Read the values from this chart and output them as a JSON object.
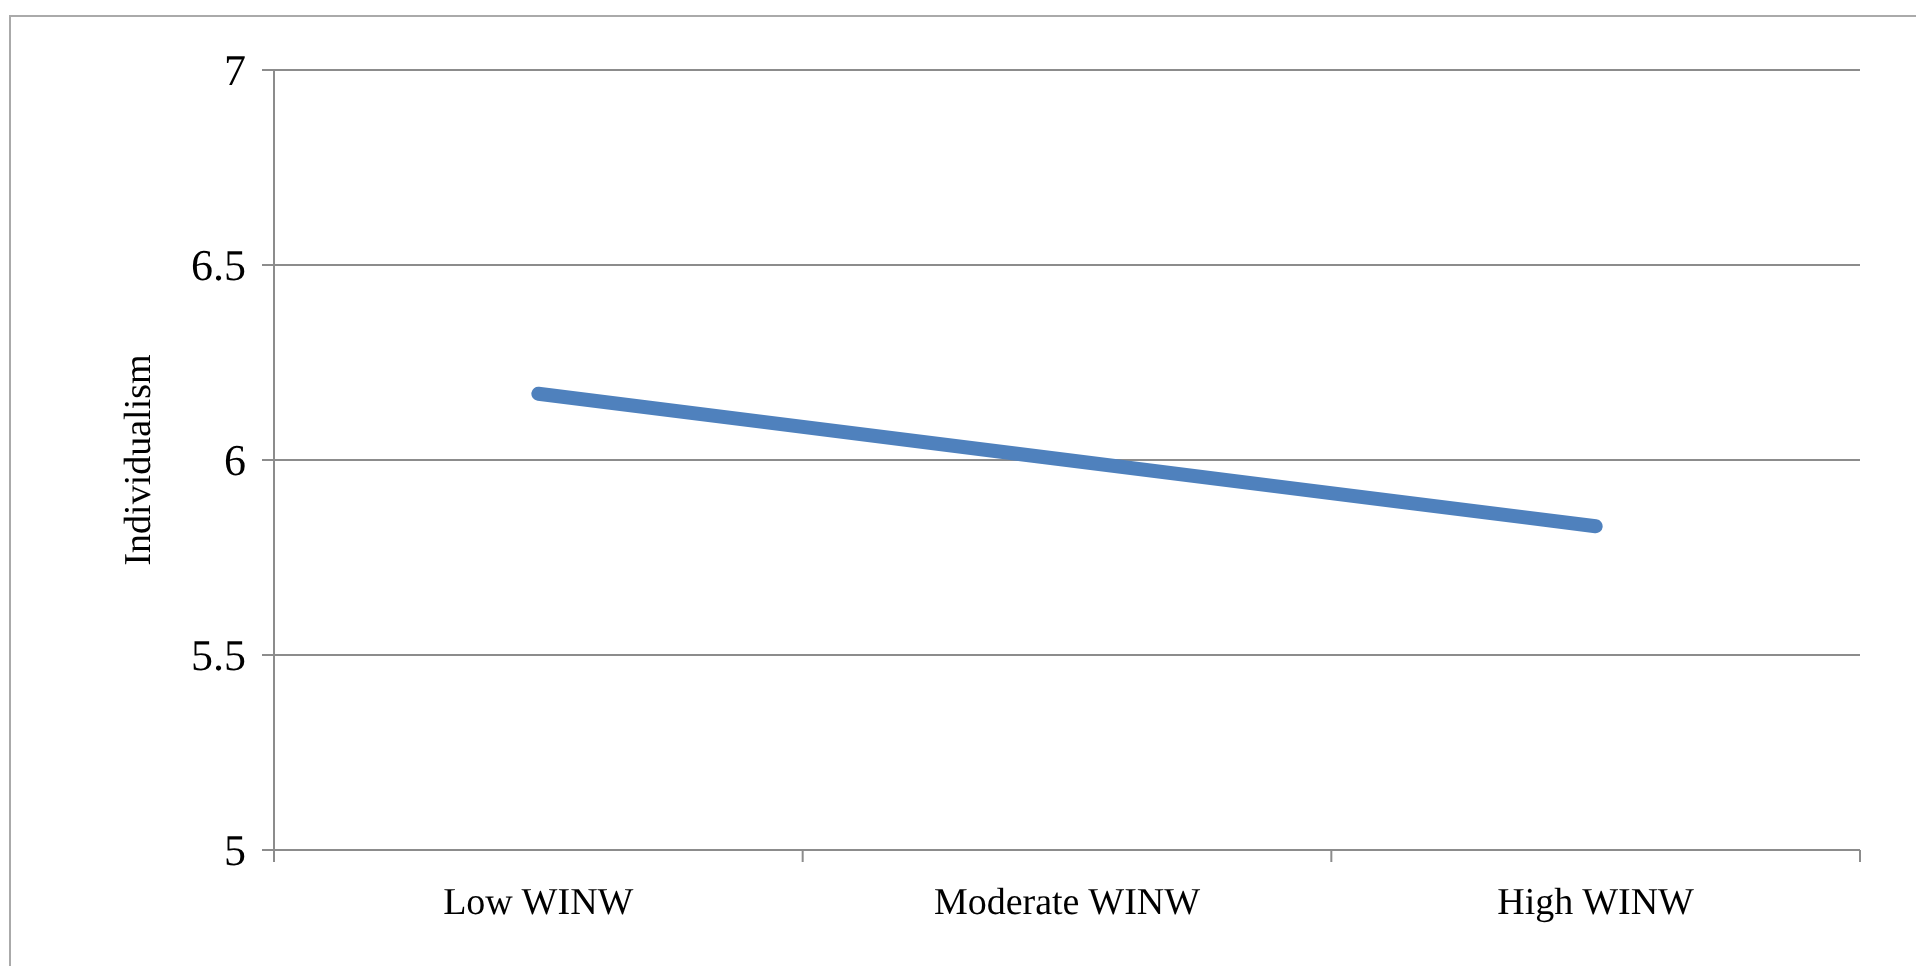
{
  "chart_data": {
    "type": "line",
    "ylabel": "Individualism",
    "categories": [
      "Low WINW",
      "Moderate WINW",
      "High WINW"
    ],
    "series": [
      {
        "color": "#4f81bd",
        "values": [
          6.17,
          6.0,
          5.83
        ]
      }
    ],
    "ylim": [
      5,
      7
    ],
    "yticks": [
      5,
      5.5,
      6,
      6.5,
      7
    ],
    "grid": "y",
    "marker": "none",
    "line_style": "solid"
  }
}
